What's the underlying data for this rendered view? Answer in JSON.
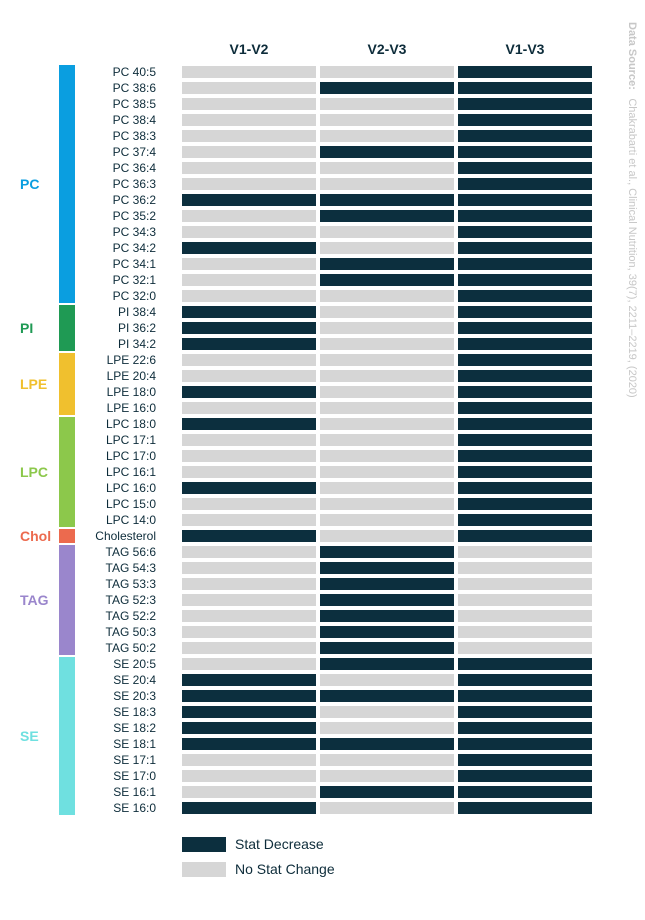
{
  "chart_data": {
    "type": "heatmap",
    "columns": [
      "V1-V2",
      "V2-V3",
      "V1-V3"
    ],
    "rows": [
      "PC 40:5",
      "PC 38:6",
      "PC 38:5",
      "PC 38:4",
      "PC 38:3",
      "PC 37:4",
      "PC 36:4",
      "PC 36:3",
      "PC 36:2",
      "PC 35:2",
      "PC 34:3",
      "PC 34:2",
      "PC 34:1",
      "PC 32:1",
      "PC 32:0",
      "PI 38:4",
      "PI 36:2",
      "PI 34:2",
      "LPE 22:6",
      "LPE 20:4",
      "LPE 18:0",
      "LPE 16:0",
      "LPC 18:0",
      "LPC 17:1",
      "LPC 17:0",
      "LPC 16:1",
      "LPC 16:0",
      "LPC 15:0",
      "LPC 14:0",
      "Cholesterol",
      "TAG 56:6",
      "TAG 54:3",
      "TAG 53:3",
      "TAG 52:3",
      "TAG 52:2",
      "TAG 50:3",
      "TAG 50:2",
      "SE 20:5",
      "SE 20:4",
      "SE 20:3",
      "SE 18:3",
      "SE 18:2",
      "SE 18:1",
      "SE 17:1",
      "SE 17:0",
      "SE 16:1",
      "SE 16:0"
    ],
    "values": [
      [
        0,
        0,
        1
      ],
      [
        0,
        1,
        1
      ],
      [
        0,
        0,
        1
      ],
      [
        0,
        0,
        1
      ],
      [
        0,
        0,
        1
      ],
      [
        0,
        1,
        1
      ],
      [
        0,
        0,
        1
      ],
      [
        0,
        0,
        1
      ],
      [
        1,
        1,
        1
      ],
      [
        0,
        1,
        1
      ],
      [
        0,
        0,
        1
      ],
      [
        1,
        0,
        1
      ],
      [
        0,
        1,
        1
      ],
      [
        0,
        1,
        1
      ],
      [
        0,
        0,
        1
      ],
      [
        1,
        0,
        1
      ],
      [
        1,
        0,
        1
      ],
      [
        1,
        0,
        1
      ],
      [
        0,
        0,
        1
      ],
      [
        0,
        0,
        1
      ],
      [
        1,
        0,
        1
      ],
      [
        0,
        0,
        1
      ],
      [
        1,
        0,
        1
      ],
      [
        0,
        0,
        1
      ],
      [
        0,
        0,
        1
      ],
      [
        0,
        0,
        1
      ],
      [
        1,
        0,
        1
      ],
      [
        0,
        0,
        1
      ],
      [
        0,
        0,
        1
      ],
      [
        1,
        0,
        1
      ],
      [
        0,
        1,
        0
      ],
      [
        0,
        1,
        0
      ],
      [
        0,
        1,
        0
      ],
      [
        0,
        1,
        0
      ],
      [
        0,
        1,
        0
      ],
      [
        0,
        1,
        0
      ],
      [
        0,
        1,
        0
      ],
      [
        0,
        1,
        1
      ],
      [
        1,
        0,
        1
      ],
      [
        1,
        1,
        1
      ],
      [
        1,
        0,
        1
      ],
      [
        1,
        0,
        1
      ],
      [
        1,
        1,
        1
      ],
      [
        0,
        0,
        1
      ],
      [
        0,
        0,
        1
      ],
      [
        0,
        1,
        1
      ],
      [
        1,
        0,
        1
      ]
    ],
    "groups": [
      {
        "name": "PC",
        "start": 0,
        "count": 15,
        "color": "#0a9ee0"
      },
      {
        "name": "PI",
        "start": 15,
        "count": 3,
        "color": "#1f9a54"
      },
      {
        "name": "LPE",
        "start": 18,
        "count": 4,
        "color": "#f0c02e"
      },
      {
        "name": "LPC",
        "start": 22,
        "count": 7,
        "color": "#8cc84b"
      },
      {
        "name": "Chol",
        "start": 29,
        "count": 1,
        "color": "#ec6a4e"
      },
      {
        "name": "TAG",
        "start": 30,
        "count": 7,
        "color": "#9a86cc"
      },
      {
        "name": "SE",
        "start": 37,
        "count": 10,
        "color": "#6fe0e0"
      }
    ],
    "legend": [
      {
        "label": "Stat Decrease",
        "value": 1,
        "color": "#0c2f3e"
      },
      {
        "label": "No Stat Change",
        "value": 0,
        "color": "#d6d6d6"
      }
    ],
    "legend_position": "bottom-left"
  },
  "source": {
    "label": "Data Source:",
    "text": "Chakrabarti et al., Clinical Nutrition, 39(7), 2211–2219, (2020)"
  }
}
